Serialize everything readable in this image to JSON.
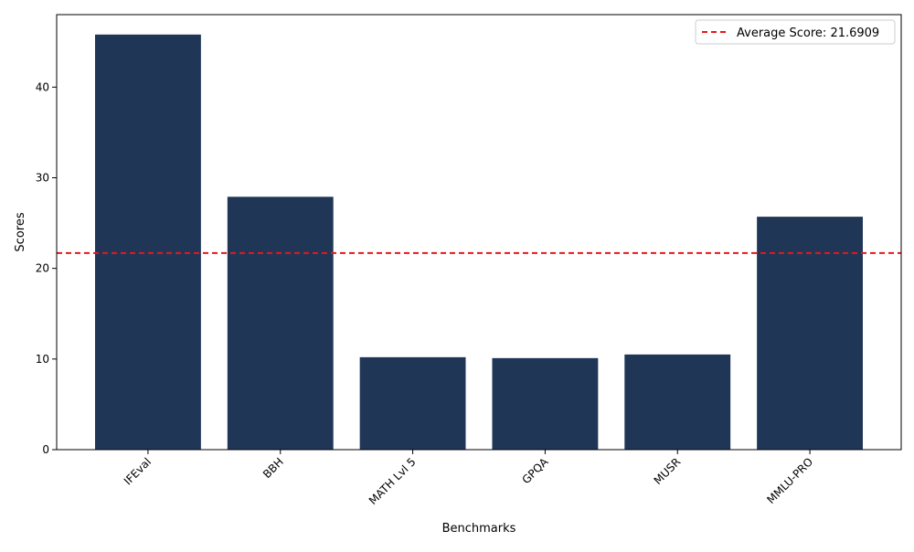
{
  "chart_data": {
    "type": "bar",
    "title": "",
    "xlabel": "Benchmarks",
    "ylabel": "Scores",
    "categories": [
      "IFEval",
      "BBH",
      "MATH Lvl 5",
      "GPQA",
      "MUSR",
      "MMLU-PRO"
    ],
    "values": [
      45.8,
      27.9,
      10.2,
      10.1,
      10.5,
      25.7
    ],
    "ylim": [
      0,
      48
    ],
    "yticks": [
      0,
      10,
      20,
      30,
      40
    ],
    "bar_color": "#1f3657",
    "grid": false,
    "reference_line": {
      "value": 21.6909,
      "label": "Average Score: 21.6909",
      "color": "#e8161b",
      "style": "dashed"
    },
    "legend": {
      "placement": "top-right"
    }
  }
}
